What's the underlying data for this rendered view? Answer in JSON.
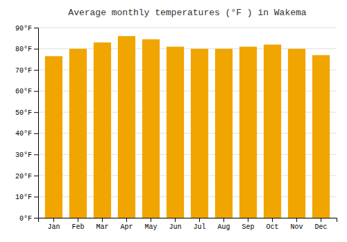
{
  "chart_data": {
    "type": "bar",
    "title": "Average monthly temperatures (°F ) in Wakema",
    "categories": [
      "Jan",
      "Feb",
      "Mar",
      "Apr",
      "May",
      "Jun",
      "Jul",
      "Aug",
      "Sep",
      "Oct",
      "Nov",
      "Dec"
    ],
    "values": [
      76.5,
      80.0,
      83.0,
      86.0,
      84.5,
      81.0,
      80.0,
      80.0,
      81.0,
      82.0,
      80.0,
      77.0
    ],
    "color": "#F0A500",
    "ylim": [
      0,
      90
    ],
    "yticks": [
      {
        "value": 0,
        "label": "0°F"
      },
      {
        "value": 10,
        "label": "10°F"
      },
      {
        "value": 20,
        "label": "20°F"
      },
      {
        "value": 30,
        "label": "30°F"
      },
      {
        "value": 40,
        "label": "40°F"
      },
      {
        "value": 50,
        "label": "50°F"
      },
      {
        "value": 60,
        "label": "60°F"
      },
      {
        "value": 70,
        "label": "70°F"
      },
      {
        "value": 80,
        "label": "80°F"
      },
      {
        "value": 90,
        "label": "90°F"
      }
    ],
    "grid": true
  }
}
